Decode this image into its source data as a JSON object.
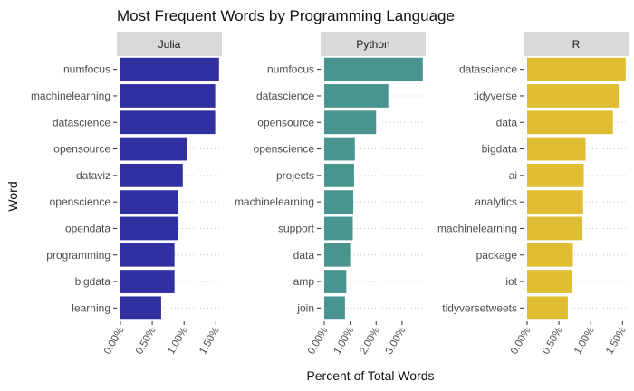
{
  "chart_data": {
    "type": "bar",
    "orientation": "horizontal",
    "title": "Most Frequent Words by Programming Language",
    "xlabel": "Percent of Total Words",
    "ylabel": "Word",
    "grid": "dotted horizontal guides",
    "legend": "none",
    "panels": [
      {
        "name": "Julia",
        "color": "#3030a0",
        "xlim": [
          0,
          1.55
        ],
        "ticks": [
          0,
          0.5,
          1.0,
          1.5
        ],
        "tick_labels": [
          "0.00%",
          "0.50%",
          "1.00%",
          "1.50%"
        ],
        "categories": [
          "numfocus",
          "machinelearning",
          "datascience",
          "opensource",
          "dataviz",
          "openscience",
          "opendata",
          "programming",
          "bigdata",
          "learning"
        ],
        "values": [
          1.55,
          1.49,
          1.49,
          1.05,
          0.98,
          0.91,
          0.9,
          0.85,
          0.85,
          0.64
        ]
      },
      {
        "name": "Python",
        "color": "#4a9490",
        "xlim": [
          0,
          3.8
        ],
        "ticks": [
          0,
          1.0,
          2.0,
          3.0
        ],
        "tick_labels": [
          "0.00%",
          "1.00%",
          "2.00%",
          "3.00%"
        ],
        "categories": [
          "numfocus",
          "datascience",
          "opensource",
          "openscience",
          "projects",
          "machinelearning",
          "support",
          "data",
          "amp",
          "join"
        ],
        "values": [
          3.8,
          2.47,
          2.0,
          1.18,
          1.15,
          1.12,
          1.1,
          1.0,
          0.85,
          0.8
        ]
      },
      {
        "name": "R",
        "color": "#e0be33",
        "xlim": [
          0,
          1.55
        ],
        "ticks": [
          0,
          0.5,
          1.0,
          1.5
        ],
        "tick_labels": [
          "0.00%",
          "0.50%",
          "1.00%",
          "1.50%"
        ],
        "categories": [
          "datascience",
          "tidyverse",
          "data",
          "bigdata",
          "ai",
          "analytics",
          "machinelearning",
          "package",
          "iot",
          "tidyversetweets"
        ],
        "values": [
          1.55,
          1.44,
          1.35,
          0.92,
          0.89,
          0.88,
          0.87,
          0.72,
          0.7,
          0.64
        ]
      }
    ]
  }
}
